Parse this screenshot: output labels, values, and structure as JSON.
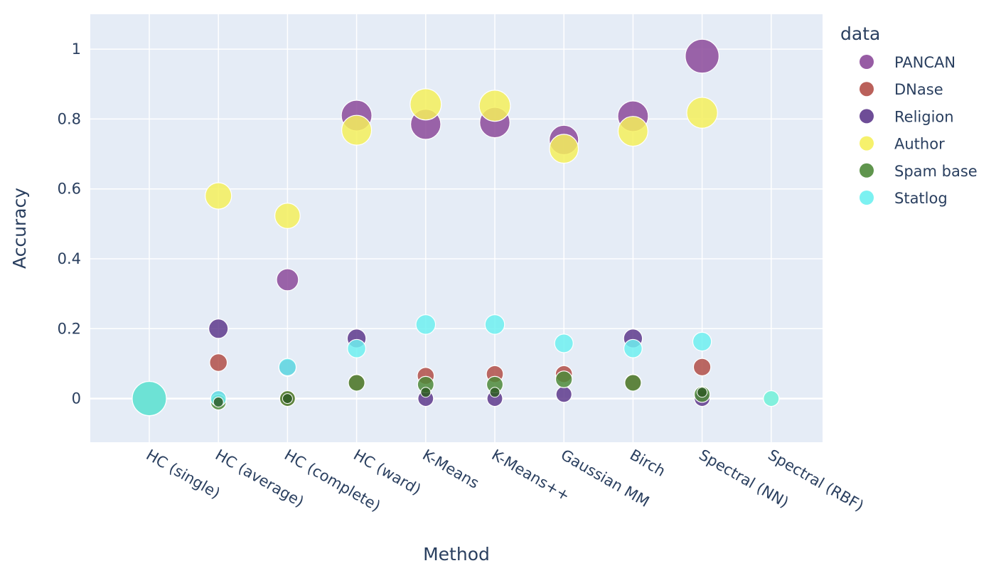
{
  "chart_data": {
    "type": "scatter",
    "xlabel": "Method",
    "ylabel": "Accuracy",
    "ylim": [
      -0.125,
      1.1
    ],
    "y_ticks": [
      0,
      0.2,
      0.4,
      0.6,
      0.8,
      1
    ],
    "y_tick_labels": [
      "0",
      "0.2",
      "0.4",
      "0.6",
      "0.8",
      "1"
    ],
    "grid": true,
    "legend_title": "data",
    "legend_placement": "right",
    "marker_size_encodes": "accuracy",
    "categories": [
      "HC (single)",
      "HC (average)",
      "HC (complete)",
      "HC (ward)",
      "K-Means",
      "K-Means++",
      "Gaussian MM",
      "Birch",
      "Spectral (NN)",
      "Spectral (RBF)"
    ],
    "series": [
      {
        "name": "PANCAN",
        "color": "#8c4a9a",
        "values": [
          0.0,
          0.0,
          0.34,
          0.81,
          0.785,
          0.79,
          0.74,
          0.808,
          0.98,
          null
        ]
      },
      {
        "name": "DNase",
        "color": "#b24f48",
        "values": [
          0.0,
          0.103,
          0.0,
          0.046,
          0.065,
          0.07,
          0.07,
          0.046,
          0.09,
          null
        ]
      },
      {
        "name": "Religion",
        "color": "#5e3a8c",
        "values": [
          0.0,
          0.2,
          0.088,
          0.172,
          0.0,
          0.0,
          0.012,
          0.172,
          0.0,
          null
        ]
      },
      {
        "name": "Author",
        "color": "#f5f05c",
        "values": [
          0.0,
          0.58,
          0.523,
          0.768,
          0.842,
          0.838,
          0.715,
          0.765,
          0.818,
          0.0
        ]
      },
      {
        "name": "Spam base",
        "color": "#4e8a3a",
        "values": [
          0.0,
          -0.01,
          0.0,
          0.045,
          0.04,
          0.04,
          0.055,
          0.045,
          0.012,
          null
        ]
      },
      {
        "name": "Statlog",
        "color": "#6ef0f0",
        "values": [
          0.0,
          0.0,
          0.09,
          0.143,
          0.212,
          0.212,
          0.158,
          0.143,
          0.163,
          0.0
        ]
      }
    ],
    "overlay_markers": [
      {
        "series": "Spam base",
        "category": "HC (average)",
        "value": -0.01
      },
      {
        "series": "Spam base",
        "category": "HC (complete)",
        "value": 0.0
      },
      {
        "series": "Spam base",
        "category": "K-Means",
        "value": 0.018
      },
      {
        "series": "Spam base",
        "category": "K-Means++",
        "value": 0.018
      },
      {
        "series": "Spam base",
        "category": "Spectral (NN)",
        "value": 0.018
      }
    ]
  }
}
